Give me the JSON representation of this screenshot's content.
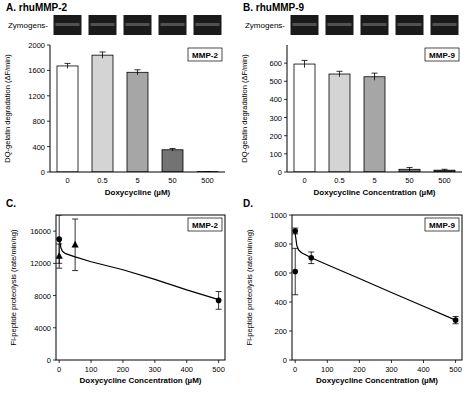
{
  "chart_data": [
    {
      "type": "bar",
      "title": "A. rhuMMP-2",
      "inset_label": "MMP-2",
      "strip_label": "Zymogens-",
      "x_label": "Doxycycline (µM)",
      "y_label": "DQ-gelatin degradation (ΔF/min)",
      "categories": [
        "0",
        "0.5",
        "5",
        "50",
        "500"
      ],
      "values": [
        1670,
        1840,
        1570,
        350,
        5
      ],
      "errors": [
        40,
        50,
        40,
        20,
        0
      ],
      "colors": [
        "#ffffff",
        "#d4d4d4",
        "#a6a6a6",
        "#737373",
        "#404040"
      ],
      "ylim": [
        0,
        2000
      ],
      "yticks": [
        0,
        400,
        800,
        1200,
        1600,
        2000
      ],
      "grid": false
    },
    {
      "type": "bar",
      "title": "B. rhuMMP-9",
      "inset_label": "MMP-9",
      "strip_label": "Zymogens-",
      "x_label": "Doxycycline Concentration (µM)",
      "y_label": "DQ-gelatin degradation (ΔF/min)",
      "categories": [
        "0",
        "0.5",
        "5",
        "50",
        "500"
      ],
      "values": [
        595,
        540,
        525,
        15,
        10
      ],
      "errors": [
        20,
        15,
        20,
        10,
        5
      ],
      "colors": [
        "#ffffff",
        "#d4d4d4",
        "#a6a6a6",
        "#737373",
        "#404040"
      ],
      "ylim": [
        0,
        700
      ],
      "yticks": [
        0,
        100,
        200,
        300,
        400,
        500,
        600
      ],
      "grid": false
    },
    {
      "type": "scatter",
      "title": "C.",
      "inset_label": "MMP-2",
      "x_label": "Doxycycline Concentration (µM)",
      "y_label": "Fl-peptide proteolysis (rate/min/ng)",
      "series": [
        {
          "type": "scatter",
          "marker": "circle",
          "color": "#000000",
          "x": [
            0,
            500
          ],
          "values": [
            15000,
            7400
          ],
          "errors": [
            3000,
            1100
          ]
        },
        {
          "type": "scatter",
          "marker": "triangle",
          "color": "#000000",
          "x": [
            0,
            50
          ],
          "values": [
            12900,
            14300
          ],
          "errors": [
            1500,
            3200
          ]
        },
        {
          "type": "line",
          "color": "#000000",
          "x": [
            0,
            5,
            10,
            20,
            50,
            100,
            200,
            300,
            400,
            500
          ],
          "values": [
            15200,
            14000,
            13500,
            13200,
            12800,
            12200,
            11200,
            10000,
            8700,
            7500
          ]
        }
      ],
      "xlim": [
        -10,
        520
      ],
      "xticks": [
        0,
        100,
        200,
        300,
        400,
        500
      ],
      "ylim": [
        0,
        18000
      ],
      "yticks": [
        0,
        4000,
        8000,
        12000,
        16000
      ],
      "grid": false
    },
    {
      "type": "scatter",
      "title": "D.",
      "inset_label": "MMP-9",
      "x_label": "Doxycycline Concentration (µM)",
      "y_label": "Fl-peptide proteolysis (rate/min/ng)",
      "series": [
        {
          "type": "scatter",
          "marker": "circle",
          "color": "#000000",
          "x": [
            0,
            0,
            50,
            500
          ],
          "values": [
            890,
            610,
            705,
            275
          ],
          "errors": [
            20,
            160,
            40,
            25
          ]
        },
        {
          "type": "line",
          "color": "#000000",
          "x": [
            0,
            5,
            10,
            20,
            50,
            100,
            200,
            300,
            400,
            500
          ],
          "values": [
            870,
            790,
            760,
            740,
            705,
            657,
            562,
            466,
            371,
            275
          ]
        }
      ],
      "xlim": [
        -10,
        520
      ],
      "xticks": [
        0,
        100,
        200,
        300,
        400,
        500
      ],
      "ylim": [
        0,
        1000
      ],
      "yticks": [
        0,
        200,
        400,
        600,
        800,
        1000
      ],
      "grid": false
    }
  ]
}
